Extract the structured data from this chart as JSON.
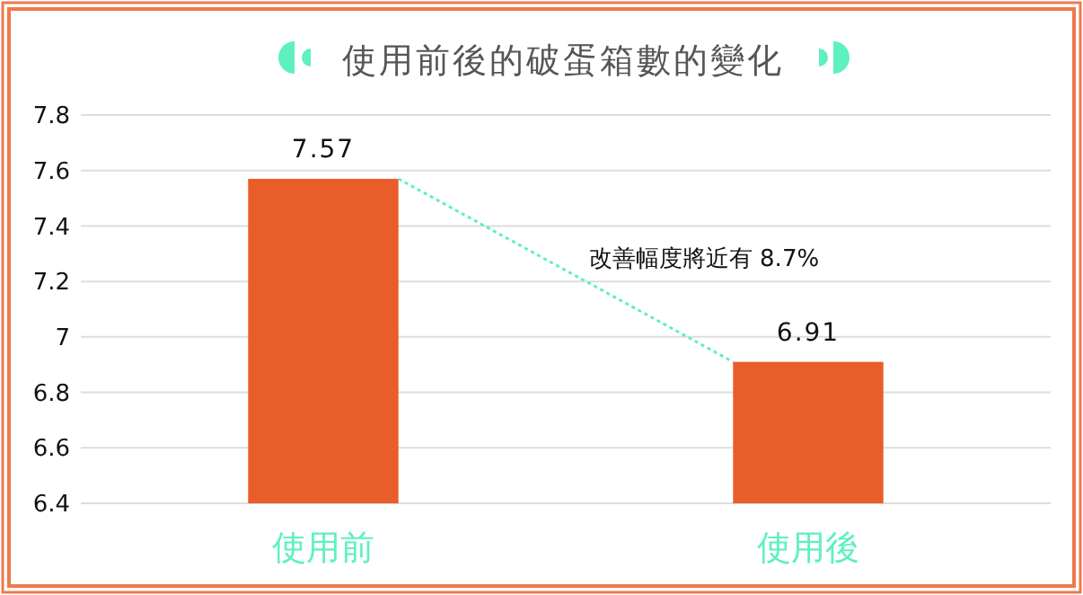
{
  "chart_data": {
    "type": "bar",
    "title": "使用前後的破蛋箱數的變化",
    "categories": [
      "使用前",
      "使用後"
    ],
    "values": [
      7.57,
      6.91
    ],
    "color": "#e95d2a",
    "ylim": [
      6.4,
      7.8
    ],
    "yticks": [
      6.4,
      6.6,
      6.8,
      7,
      7.2,
      7.4,
      7.6,
      7.8
    ],
    "grid": "y",
    "data_labels": true,
    "annotations": [
      "改善幅度將近有 8.7%"
    ]
  }
}
